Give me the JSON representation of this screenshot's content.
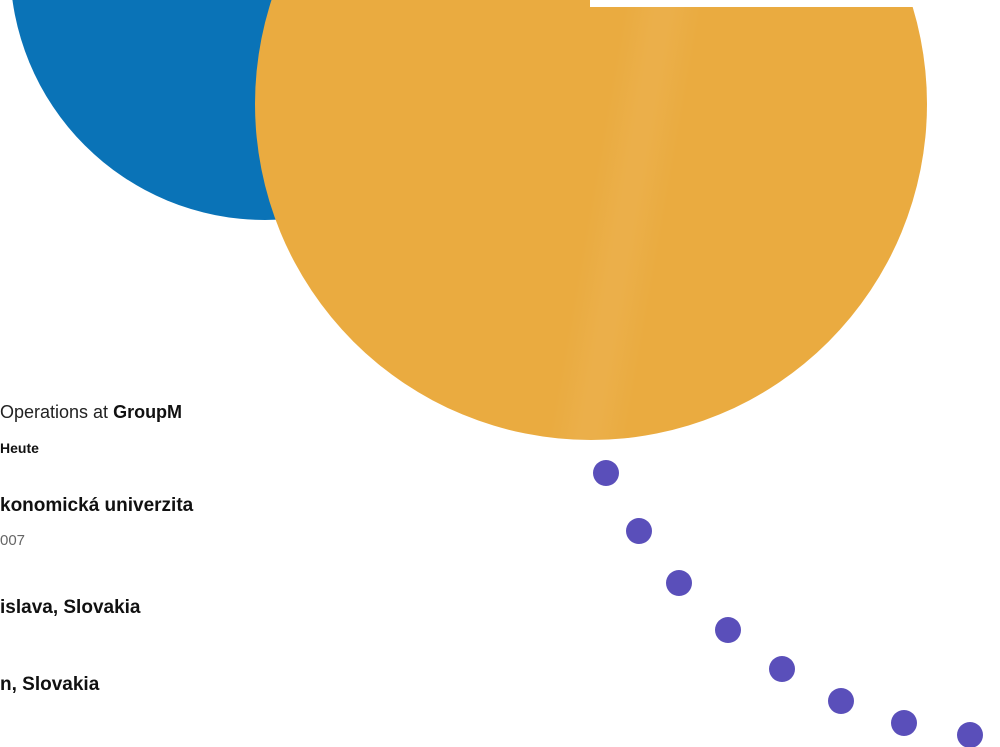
{
  "colors": {
    "blue_circle": "#0a73b7",
    "orange_circle": "#eaab40",
    "dots": "#5a4fba"
  },
  "profile": {
    "job_prefix": "Operations at ",
    "job_company": "GroupM",
    "job_period": "Heute",
    "education_name": "konomická univerzita",
    "education_period": "007",
    "location_1": "islava, Slovakia",
    "location_2": "n, Slovakia"
  }
}
